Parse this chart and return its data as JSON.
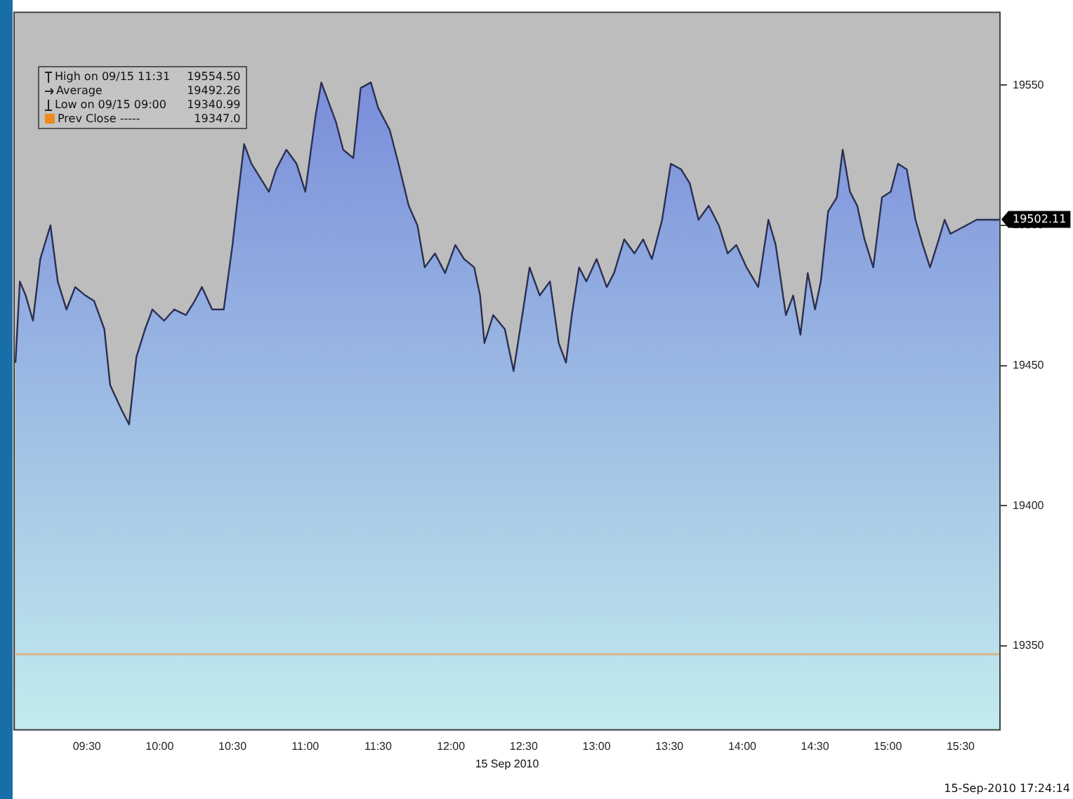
{
  "chart_data": {
    "type": "area",
    "xlabel": "15 Sep 2010",
    "x": [
      9.01,
      9.04,
      9.08,
      9.13,
      9.18,
      9.25,
      9.3,
      9.36,
      9.42,
      9.49,
      9.55,
      9.62,
      9.66,
      9.74,
      9.79,
      9.84,
      9.9,
      9.95,
      10.03,
      10.1,
      10.18,
      10.24,
      10.29,
      10.36,
      10.44,
      10.5,
      10.53,
      10.58,
      10.63,
      10.69,
      10.75,
      10.8,
      10.87,
      10.94,
      11.0,
      11.07,
      11.11,
      11.16,
      11.21,
      11.26,
      11.33,
      11.38,
      11.45,
      11.5,
      11.58,
      11.64,
      11.71,
      11.77,
      11.82,
      11.89,
      11.96,
      12.03,
      12.09,
      12.16,
      12.2,
      12.23,
      12.29,
      12.37,
      12.43,
      12.49,
      12.54,
      12.61,
      12.68,
      12.74,
      12.79,
      12.83,
      12.88,
      12.93,
      13.0,
      13.07,
      13.12,
      13.19,
      13.26,
      13.32,
      13.38,
      13.45,
      13.51,
      13.58,
      13.64,
      13.7,
      13.77,
      13.84,
      13.9,
      13.96,
      14.03,
      14.11,
      14.18,
      14.23,
      14.3,
      14.35,
      14.4,
      14.45,
      14.5,
      14.54,
      14.59,
      14.65,
      14.69,
      14.74,
      14.79,
      14.84,
      14.9,
      14.96,
      15.02,
      15.07,
      15.13,
      15.19,
      15.24,
      15.29,
      15.35,
      15.39,
      15.43,
      15.61,
      15.77
    ],
    "series": [
      {
        "color": "#7283d8",
        "values": [
          19451,
          19480,
          19475,
          19466,
          19488,
          19500,
          19480,
          19470,
          19478,
          19475,
          19473,
          19463,
          19443,
          19434,
          19429,
          19453,
          19463,
          19470,
          19466,
          19470,
          19468,
          19473,
          19478,
          19470,
          19470,
          19493,
          19507,
          19529,
          19522,
          19517,
          19512,
          19520,
          19527,
          19522,
          19512,
          19539,
          19551,
          19544,
          19537,
          19527,
          19524,
          19549,
          19551,
          19542,
          19534,
          19522,
          19507,
          19500,
          19485,
          19490,
          19483,
          19493,
          19488,
          19485,
          19475,
          19458,
          19468,
          19463,
          19448,
          19468,
          19485,
          19475,
          19480,
          19458,
          19451,
          19468,
          19485,
          19480,
          19488,
          19478,
          19483,
          19495,
          19490,
          19495,
          19488,
          19502,
          19522,
          19520,
          19515,
          19502,
          19507,
          19500,
          19490,
          19493,
          19485,
          19478,
          19502,
          19493,
          19468,
          19475,
          19461,
          19483,
          19470,
          19480,
          19505,
          19510,
          19527,
          19512,
          19507,
          19495,
          19485,
          19510,
          19512,
          19522,
          19520,
          19502,
          19493,
          19485,
          19495,
          19502,
          19497,
          19502,
          19502
        ]
      }
    ],
    "xlim": [
      9.0,
      15.77
    ],
    "xticks": [
      {
        "value": 9.5,
        "label": "09:30"
      },
      {
        "value": 10,
        "label": "10:00"
      },
      {
        "value": 10.5,
        "label": "10:30"
      },
      {
        "value": 11,
        "label": "11:00"
      },
      {
        "value": 11.5,
        "label": "11:30"
      },
      {
        "value": 12,
        "label": "12:00"
      },
      {
        "value": 12.5,
        "label": "12:30"
      },
      {
        "value": 13,
        "label": "13:00"
      },
      {
        "value": 13.5,
        "label": "13:30"
      },
      {
        "value": 14,
        "label": "14:00"
      },
      {
        "value": 14.5,
        "label": "14:30"
      },
      {
        "value": 15,
        "label": "15:00"
      },
      {
        "value": 15.5,
        "label": "15:30"
      }
    ],
    "ylim": [
      19320,
      19576
    ],
    "yticks": [
      19350,
      19400,
      19450,
      19500,
      19550
    ],
    "ref_lines": [
      {
        "axis": "y",
        "value": 19347.0,
        "color": "#d9b38c"
      }
    ],
    "grid": false,
    "legend": false,
    "annotations": [
      "High on 09/15 11:31",
      "19554.50",
      "Average",
      "19492.26",
      "Low on 09/15 09:00",
      "19340.99",
      "Prev Close -----",
      "19347.0",
      "15-Sep-2010 17:24:14",
      {
        "text": "19502.11",
        "x": 15.77,
        "y": 19502.11
      }
    ]
  }
}
